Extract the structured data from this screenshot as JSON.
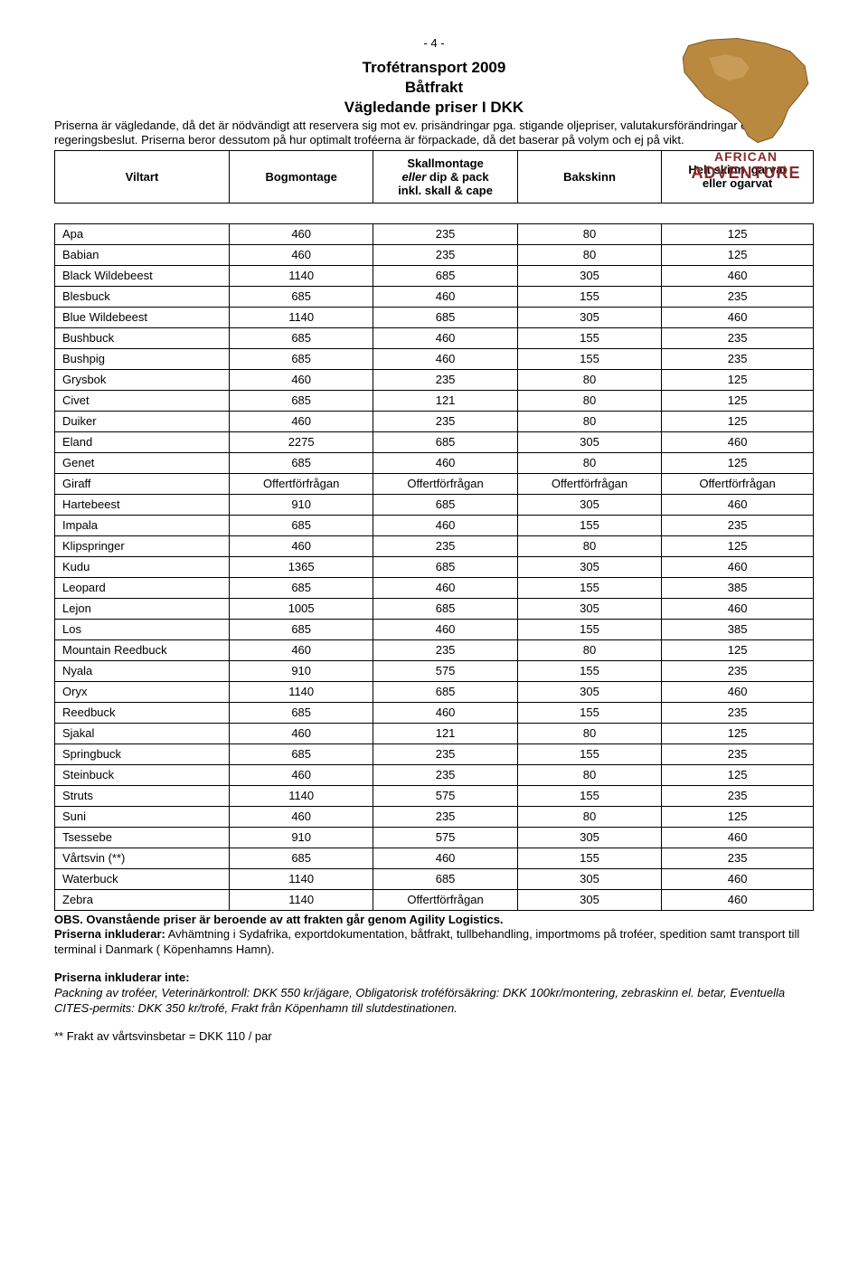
{
  "pageNumber": "- 4 -",
  "titles": {
    "t1": "Trofétransport 2009",
    "t2": "Båtfrakt",
    "t3": "Vägledande priser I DKK"
  },
  "intro": "Priserna är vägledande, då det är nödvändigt att reservera sig mot ev. prisändringar pga. stigande oljepriser, valutakursförändringar och ev. regeringsbeslut. Priserna beror dessutom på hur optimalt troféerna är förpackade, då det baserar på volym och ej på vikt.",
  "headers": {
    "h0": "Viltart",
    "h1": "Bogmontage",
    "h2_l1": "Skallmontage",
    "h2_l2": "eller",
    "h2_l3": " dip & pack",
    "h2_l4": "inkl. skall & cape",
    "h3": "Bakskinn",
    "h4_l1": "Helt skinn, garvat",
    "h4_l2": "eller ogarvat"
  },
  "rows": [
    {
      "name": "Apa",
      "c1": "460",
      "c2": "235",
      "c3": "80",
      "c4": "125"
    },
    {
      "name": "Babian",
      "c1": "460",
      "c2": "235",
      "c3": "80",
      "c4": "125"
    },
    {
      "name": "Black Wildebeest",
      "c1": "1140",
      "c2": "685",
      "c3": "305",
      "c4": "460"
    },
    {
      "name": "Blesbuck",
      "c1": "685",
      "c2": "460",
      "c3": "155",
      "c4": "235"
    },
    {
      "name": "Blue Wildebeest",
      "c1": "1140",
      "c2": "685",
      "c3": "305",
      "c4": "460"
    },
    {
      "name": "Bushbuck",
      "c1": "685",
      "c2": "460",
      "c3": "155",
      "c4": "235"
    },
    {
      "name": "Bushpig",
      "c1": "685",
      "c2": "460",
      "c3": "155",
      "c4": "235"
    },
    {
      "name": "Grysbok",
      "c1": "460",
      "c2": "235",
      "c3": "80",
      "c4": "125"
    },
    {
      "name": "Civet",
      "c1": "685",
      "c2": "121",
      "c3": "80",
      "c4": "125"
    },
    {
      "name": "Duiker",
      "c1": "460",
      "c2": "235",
      "c3": "80",
      "c4": "125"
    },
    {
      "name": "Eland",
      "c1": "2275",
      "c2": "685",
      "c3": "305",
      "c4": "460"
    },
    {
      "name": "Genet",
      "c1": "685",
      "c2": "460",
      "c3": "80",
      "c4": "125"
    },
    {
      "name": "Giraff",
      "c1": "Offertförfrågan",
      "c2": "Offertförfrågan",
      "c3": "Offertförfrågan",
      "c4": "Offertförfrågan"
    },
    {
      "name": "Hartebeest",
      "c1": "910",
      "c2": "685",
      "c3": "305",
      "c4": "460"
    },
    {
      "name": "Impala",
      "c1": "685",
      "c2": "460",
      "c3": "155",
      "c4": "235"
    },
    {
      "name": "Klipspringer",
      "c1": "460",
      "c2": "235",
      "c3": "80",
      "c4": "125"
    },
    {
      "name": "Kudu",
      "c1": "1365",
      "c2": "685",
      "c3": "305",
      "c4": "460"
    },
    {
      "name": "Leopard",
      "c1": "685",
      "c2": "460",
      "c3": "155",
      "c4": "385"
    },
    {
      "name": "Lejon",
      "c1": "1005",
      "c2": "685",
      "c3": "305",
      "c4": "460"
    },
    {
      "name": "Los",
      "c1": "685",
      "c2": "460",
      "c3": "155",
      "c4": "385"
    },
    {
      "name": "Mountain Reedbuck",
      "c1": "460",
      "c2": "235",
      "c3": "80",
      "c4": "125"
    },
    {
      "name": "Nyala",
      "c1": "910",
      "c2": "575",
      "c3": "155",
      "c4": "235"
    },
    {
      "name": "Oryx",
      "c1": "1140",
      "c2": "685",
      "c3": "305",
      "c4": "460"
    },
    {
      "name": "Reedbuck",
      "c1": "685",
      "c2": "460",
      "c3": "155",
      "c4": "235"
    },
    {
      "name": "Sjakal",
      "c1": "460",
      "c2": "121",
      "c3": "80",
      "c4": "125"
    },
    {
      "name": "Springbuck",
      "c1": "685",
      "c2": "235",
      "c3": "155",
      "c4": "235"
    },
    {
      "name": "Steinbuck",
      "c1": "460",
      "c2": "235",
      "c3": "80",
      "c4": "125"
    },
    {
      "name": "Struts",
      "c1": "1140",
      "c2": "575",
      "c3": "155",
      "c4": "235"
    },
    {
      "name": "Suni",
      "c1": "460",
      "c2": "235",
      "c3": "80",
      "c4": "125"
    },
    {
      "name": "Tsessebe",
      "c1": "910",
      "c2": "575",
      "c3": "305",
      "c4": "460"
    },
    {
      "name": "Vårtsvin (**)",
      "c1": "685",
      "c2": "460",
      "c3": "155",
      "c4": "235"
    },
    {
      "name": "Waterbuck",
      "c1": "1140",
      "c2": "685",
      "c3": "305",
      "c4": "460"
    },
    {
      "name": "Zebra",
      "c1": "1140",
      "c2": "Offertförfrågan",
      "c3": "305",
      "c4": "460"
    }
  ],
  "obs": {
    "line1_bold": "OBS. Ovanstående priser är beroende av att frakten går genom Agility Logistics.",
    "line2_bold": "Priserna inkluderar:",
    "line2_rest": " Avhämtning i Sydafrika, exportdokumentation, båtfrakt, tullbehandling, importmoms på troféer, spedition samt transport till terminal i Danmark ( Köpenhamns Hamn)."
  },
  "excludes": {
    "title": "Priserna inkluderar inte:",
    "body": "Packning av troféer, Veterinärkontroll: DKK 550 kr/jägare, Obligatorisk troféförsäkring: DKK 100kr/montering, zebraskinn el. betar, Eventuella CITES-permits: DKK 350 kr/trofé, Frakt från Köpenhamn till slutdestinationen."
  },
  "footnote": "** Frakt av vårtsvinsbetar = DKK 110 / par",
  "logo": {
    "text1": "AFRICAN",
    "text2": "ADVENTURE",
    "fill": "#b8893e",
    "outline": "#7a5220"
  }
}
